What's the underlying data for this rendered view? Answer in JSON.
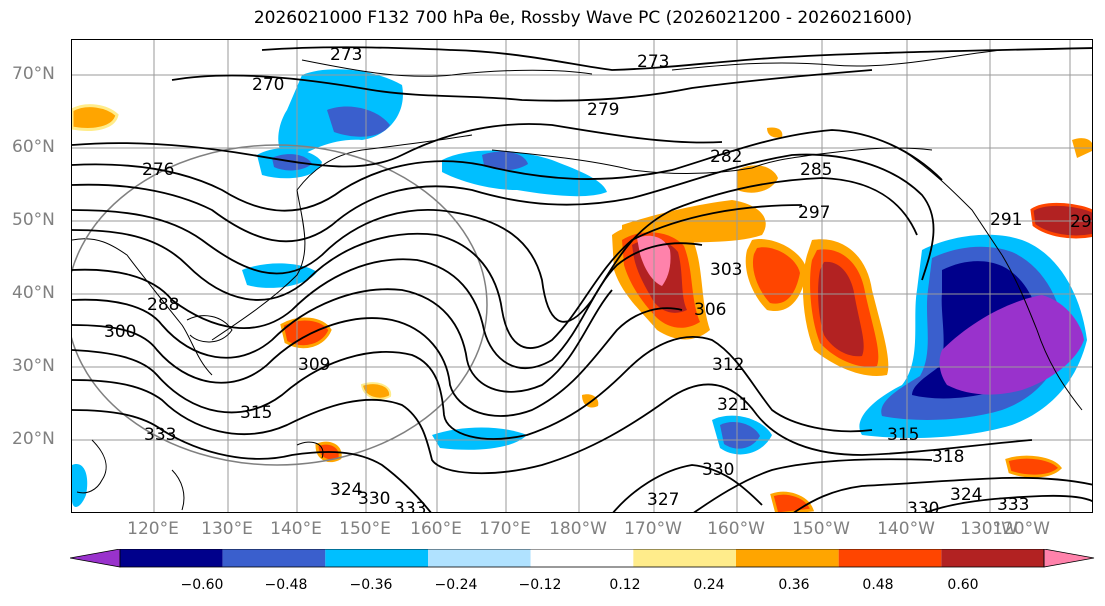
{
  "title": "2026021000 F132 700 hPa θe, Rossby Wave PC (2026021200 - 2026021600)",
  "lat_labels": [
    "70°N",
    "60°N",
    "50°N",
    "40°N",
    "30°N",
    "20°N"
  ],
  "lon_labels": [
    "120°E",
    "130°E",
    "140°E",
    "150°E",
    "160°E",
    "170°E",
    "180°W",
    "170°W",
    "160°W",
    "150°W",
    "140°W",
    "130°W",
    "120°W"
  ],
  "contour_labels": [
    "273",
    "273",
    "270",
    "279",
    "276",
    "282",
    "285",
    "297",
    "288",
    "300",
    "303",
    "306",
    "309",
    "312",
    "315",
    "315",
    "321",
    "318",
    "324",
    "324",
    "327",
    "330",
    "330",
    "330",
    "333",
    "333",
    "333",
    "291",
    "29"
  ],
  "colorbar": {
    "ticks": [
      "−0.60",
      "−0.48",
      "−0.36",
      "−0.24",
      "−0.12",
      "0.12",
      "0.24",
      "0.36",
      "0.48",
      "0.60"
    ],
    "colors": [
      "#9932cc",
      "#00008b",
      "#3a5fcd",
      "#00bfff",
      "#b0e2ff",
      "#ffffff",
      "#ffec8b",
      "#ffa500",
      "#ff4500",
      "#b22222",
      "#ff82ab"
    ]
  }
}
